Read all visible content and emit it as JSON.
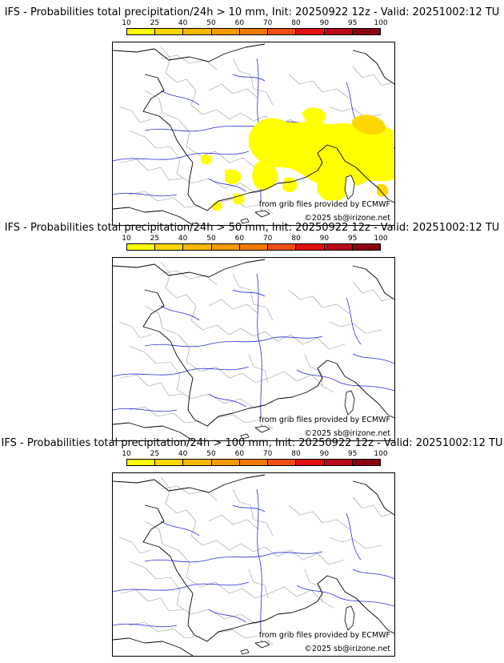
{
  "colorbar": {
    "ticks": [
      "10",
      "25",
      "40",
      "50",
      "60",
      "70",
      "80",
      "90",
      "95",
      "100"
    ],
    "colors": [
      "#ffff00",
      "#ffd700",
      "#f5b800",
      "#f29a00",
      "#f07a00",
      "#ee4e14",
      "#e01010",
      "#b8081a",
      "#8a0510"
    ]
  },
  "colors": {
    "coastline": "#000000",
    "rivers": "#2b2bdc",
    "admin_borders": "#9a9a9a",
    "probability_10_25": "#ffff00",
    "probability_25_40": "#ffd700"
  },
  "panels": [
    {
      "title": "IFS - Probabilities total precipitation/24h > 10 mm, Init: 20250922 12z - Valid: 20251002:12 TU",
      "credit_grib": "from grib files provided by ECMWF",
      "credit_copyright": "©2025 sb@irizone.net",
      "has_precip": true
    },
    {
      "title": "IFS - Probabilities total precipitation/24h > 50 mm, Init: 20250922 12z - Valid: 20251002:12 TU",
      "credit_grib": "from grib files provided by ECMWF",
      "credit_copyright": "©2025 sb@irizone.net",
      "has_precip": false
    },
    {
      "title": "IFS - Probabilities total precipitation/24h > 100 mm, Init: 20250922 12z - Valid: 20251002:12 TU",
      "credit_grib": "from grib files provided by ECMWF",
      "credit_copyright": "©2025 sb@irizone.net",
      "has_precip": false
    }
  ]
}
